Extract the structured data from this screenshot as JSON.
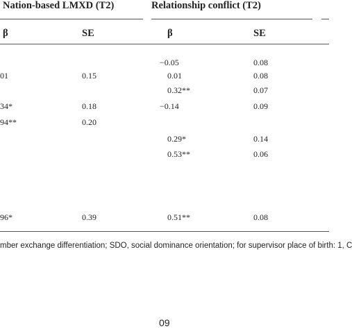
{
  "table": {
    "groups": [
      "Nation-based LMXD (T2)",
      "Relationship conflict (T2)"
    ],
    "columns": [
      "β",
      "SE",
      "β",
      "SE"
    ],
    "rows": [
      [
        null,
        null,
        "−0.05",
        "0.08"
      ],
      [
        "01",
        "0.15",
        "0.01",
        "0.08"
      ],
      [
        null,
        null,
        "0.32**",
        "0.07"
      ],
      [
        "34*",
        "0.18",
        "−0.14",
        "0.09"
      ],
      [
        "94**",
        "0.20",
        null,
        null
      ],
      [
        null,
        null,
        "0.29*",
        "0.14"
      ],
      [
        null,
        null,
        "0.53**",
        "0.06"
      ],
      [
        "96*",
        "0.39",
        "0.51**",
        "0.08"
      ]
    ]
  },
  "footnote": "mber exchange differentiation; SDO, social dominance orientation; for supervisor place of birth: 1, C",
  "page_number": "09"
}
